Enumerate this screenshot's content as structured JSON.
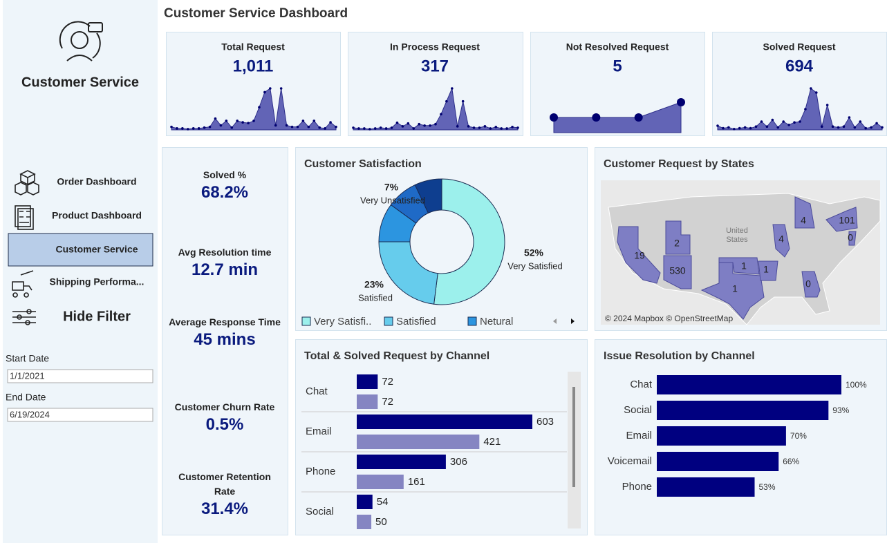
{
  "sidebar": {
    "brand": "Customer Service",
    "nav": [
      "Order Dashboard",
      "Product Dashboard",
      "Customer Service",
      "Shipping Performa..."
    ],
    "active": 2,
    "hide_filter": "Hide Filter",
    "filters": [
      {
        "label": "Start Date",
        "value": "1/1/2021"
      },
      {
        "label": "End Date",
        "value": "6/19/2024"
      }
    ]
  },
  "header": {
    "title": "Customer Service Dashboard"
  },
  "kpis": [
    {
      "label": "Total Request",
      "value": "1,011",
      "sparkline": {
        "type": "area",
        "color": "#6264b6",
        "values": [
          4,
          2,
          2,
          1,
          2,
          2,
          3,
          4,
          15,
          6,
          12,
          3,
          12,
          10,
          9,
          12,
          30,
          50,
          55,
          6,
          55,
          6,
          4,
          4,
          12,
          4,
          12,
          3,
          2,
          10,
          4
        ]
      }
    },
    {
      "label": "In Process Request",
      "value": "317",
      "sparkline": {
        "type": "area",
        "color": "#6264b6",
        "values": [
          3,
          2,
          2,
          1,
          2,
          3,
          2,
          3,
          10,
          5,
          9,
          2,
          8,
          6,
          6,
          8,
          22,
          40,
          58,
          5,
          40,
          5,
          3,
          3,
          5,
          2,
          4,
          2,
          2,
          4,
          3
        ]
      }
    },
    {
      "label": "Not Resolved Request",
      "value": "5",
      "sparkline": {
        "type": "area",
        "color": "#6264b6",
        "values": [
          1,
          1,
          1,
          2
        ]
      }
    },
    {
      "label": "Solved Request",
      "value": "694",
      "sparkline": {
        "type": "area",
        "color": "#6264b6",
        "values": [
          5,
          2,
          3,
          1,
          2,
          3,
          2,
          4,
          10,
          4,
          12,
          3,
          10,
          6,
          9,
          10,
          25,
          50,
          45,
          4,
          30,
          4,
          3,
          4,
          15,
          3,
          10,
          2,
          3,
          8,
          3
        ]
      }
    }
  ],
  "metrics": [
    {
      "label": "Solved %",
      "value": "68.2%"
    },
    {
      "label": "Avg Resolution time",
      "value": "12.7 min"
    },
    {
      "label": "Average Response Time",
      "value": "45 mins"
    },
    {
      "label": "Customer Churn Rate",
      "value": "0.5%"
    },
    {
      "label": "Customer Retention Rate",
      "value": "31.4%"
    }
  ],
  "chart_data": [
    {
      "type": "pie",
      "title": "Customer Satisfaction",
      "categories": [
        "Very Satisfied",
        "Satisfied",
        null,
        null,
        "Very Unsatisfied"
      ],
      "values": [
        52,
        23,
        10,
        8,
        7
      ],
      "value_labels": [
        "52%",
        "23%",
        null,
        null,
        "7%"
      ],
      "colors": [
        "#9cf0ec",
        "#66ccec",
        "#2c95e0",
        "#1f6ac6",
        "#0e3e8f"
      ],
      "legend_labels": [
        "Very Satisfi..",
        "Satisfied",
        "Netural"
      ]
    },
    {
      "type": "map",
      "title": "Customer Request by States",
      "values": [
        19,
        530,
        2,
        1,
        1,
        1,
        4,
        4,
        101,
        0,
        0
      ],
      "color": "#7e7ec4",
      "region_label": "United States",
      "attribution": "© 2024 Mapbox © OpenStreetMap"
    },
    {
      "type": "bar",
      "title": "Total & Solved Request by Channel",
      "categories": [
        "Chat",
        "Email",
        "Phone",
        "Social"
      ],
      "series": [
        {
          "color": "#000080",
          "values": [
            72,
            603,
            306,
            54
          ]
        },
        {
          "color": "#8585c2",
          "values": [
            72,
            421,
            161,
            50
          ]
        }
      ]
    },
    {
      "type": "bar",
      "title": "Issue Resolution by Channel",
      "categories": [
        "Chat",
        "Social",
        "Email",
        "Voicemail",
        "Phone"
      ],
      "values": [
        100,
        93,
        70,
        66,
        53
      ],
      "value_labels": [
        "100%",
        "93%",
        "70%",
        "66%",
        "53%"
      ],
      "color": "#000080"
    }
  ]
}
